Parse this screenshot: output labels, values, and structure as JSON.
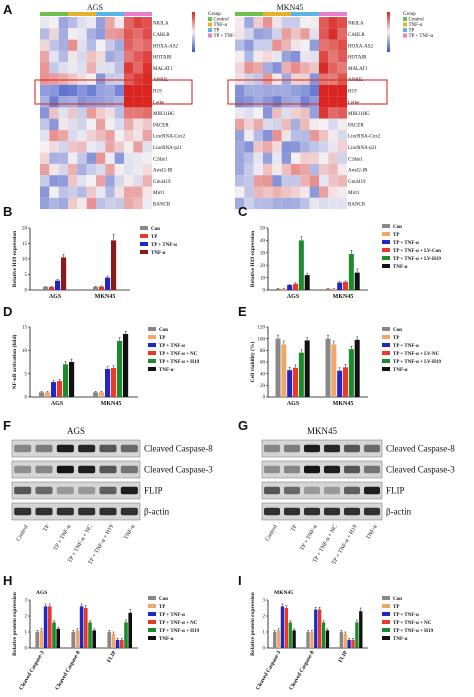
{
  "panel_A": {
    "label": "A",
    "heatmaps": [
      {
        "title": "AGS"
      },
      {
        "title": "MKN45"
      }
    ],
    "genes": [
      "NKILA",
      "CARLR",
      "HOXA-AS2",
      "HOTAIR",
      "MALAT1",
      "ANRIL",
      "H19",
      "Lethe",
      "MIR31HG",
      "PACER",
      "LincRNA-Cox2",
      "LincRNA-p21",
      "C2dat1",
      "Ariel2-IR",
      "Gm4419",
      "Mirt1",
      "BANCR"
    ],
    "group_legend": {
      "title": "Group",
      "items": [
        "Control",
        "TNF-α",
        "TP",
        "TP + TNF-α"
      ]
    },
    "colors": {
      "high": "#d9241f",
      "mid": "#f4f1f4",
      "low": "#3b53c6",
      "box": "#d73027"
    }
  },
  "chart_data": [
    {
      "panel": "B",
      "type": "bar",
      "ylabel": "Relative H19 expression",
      "categories": [
        "AGS",
        "MKN45"
      ],
      "series": [
        {
          "name": "Con",
          "color": "#888888",
          "values": [
            1.0,
            1.0
          ],
          "err": [
            0.2,
            0.2
          ]
        },
        {
          "name": "TP",
          "color": "#e8392b",
          "values": [
            1.0,
            1.1
          ],
          "err": [
            0.2,
            0.2
          ]
        },
        {
          "name": "TP + TNF-α",
          "color": "#2027c2",
          "values": [
            3.0,
            4.0
          ],
          "err": [
            0.4,
            0.5
          ]
        },
        {
          "name": "TNF-α",
          "color": "#8b1a1a",
          "values": [
            10.5,
            16.0
          ],
          "err": [
            1.0,
            2.0
          ]
        }
      ],
      "ylim": [
        0,
        20
      ],
      "yticks": [
        0,
        5,
        10,
        15,
        20
      ]
    },
    {
      "panel": "C",
      "type": "bar",
      "ylabel": "Relative H19 expression",
      "categories": [
        "AGS",
        "MKN45"
      ],
      "series": [
        {
          "name": "Con",
          "color": "#888888",
          "values": [
            1.0,
            1.0
          ],
          "err": [
            0.2,
            0.2
          ]
        },
        {
          "name": "TP",
          "color": "#f0a86a",
          "values": [
            1.0,
            1.0
          ],
          "err": [
            0.2,
            0.2
          ]
        },
        {
          "name": "TP + TNF-α",
          "color": "#2027c2",
          "values": [
            4.0,
            6.0
          ],
          "err": [
            0.6,
            0.8
          ]
        },
        {
          "name": "TP + TNF-α + LV-Con",
          "color": "#e8392b",
          "values": [
            5.0,
            6.5
          ],
          "err": [
            0.8,
            0.8
          ]
        },
        {
          "name": "TP + TNF-α + LV-H19",
          "color": "#1d8a2e",
          "values": [
            40.0,
            29.0
          ],
          "err": [
            3.0,
            3.0
          ]
        },
        {
          "name": "TNF-α",
          "color": "#111111",
          "values": [
            12.0,
            14.0
          ],
          "err": [
            1.5,
            3.0
          ]
        }
      ],
      "ylim": [
        0,
        50
      ],
      "yticks": [
        0,
        10,
        20,
        30,
        40,
        50
      ]
    },
    {
      "panel": "D",
      "type": "bar",
      "ylabel": "NF-κB activation (fold)",
      "categories": [
        "AGS",
        "MKN45"
      ],
      "series": [
        {
          "name": "Con",
          "color": "#888888",
          "values": [
            1.0,
            1.0
          ],
          "err": [
            0.2,
            0.2
          ]
        },
        {
          "name": "TP",
          "color": "#f0a86a",
          "values": [
            1.0,
            1.0
          ],
          "err": [
            0.2,
            0.2
          ]
        },
        {
          "name": "TP + TNF-α",
          "color": "#2027c2",
          "values": [
            3.2,
            6.0
          ],
          "err": [
            0.4,
            0.5
          ]
        },
        {
          "name": "TP + TNF-α + NC",
          "color": "#e8392b",
          "values": [
            3.4,
            6.2
          ],
          "err": [
            0.4,
            0.5
          ]
        },
        {
          "name": "TP + TNF-α + H19",
          "color": "#1d8a2e",
          "values": [
            7.0,
            12.0
          ],
          "err": [
            0.6,
            0.7
          ]
        },
        {
          "name": "TNF-α",
          "color": "#111111",
          "values": [
            7.5,
            13.5
          ],
          "err": [
            0.6,
            0.6
          ]
        }
      ],
      "ylim": [
        0,
        15
      ],
      "yticks": [
        0,
        5,
        10,
        15
      ]
    },
    {
      "panel": "E",
      "type": "bar",
      "ylabel": "Cell viability (%)",
      "categories": [
        "AGS",
        "MKN45"
      ],
      "series": [
        {
          "name": "Con",
          "color": "#888888",
          "values": [
            100,
            100
          ],
          "err": [
            6,
            6
          ]
        },
        {
          "name": "TP",
          "color": "#f0a86a",
          "values": [
            90,
            90
          ],
          "err": [
            6,
            6
          ]
        },
        {
          "name": "TP + TNF-α",
          "color": "#2027c2",
          "values": [
            46,
            45
          ],
          "err": [
            5,
            5
          ]
        },
        {
          "name": "TP + TNF-α + LV-NC",
          "color": "#e8392b",
          "values": [
            50,
            51
          ],
          "err": [
            5,
            5
          ]
        },
        {
          "name": "TP + TNF-α + LV-H19",
          "color": "#1d8a2e",
          "values": [
            76,
            82
          ],
          "err": [
            5,
            5
          ]
        },
        {
          "name": "TNF-α",
          "color": "#111111",
          "values": [
            97,
            98
          ],
          "err": [
            5,
            5
          ]
        }
      ],
      "ylim": [
        0,
        120
      ],
      "yticks": [
        0,
        20,
        40,
        60,
        80,
        100,
        120
      ]
    },
    {
      "panel": "H",
      "type": "bar",
      "title": "AGS",
      "ylabel": "Relative protein expression",
      "categories": [
        "Cleaved Caspase-3",
        "Cleaved Caspase-8",
        "FLIP"
      ],
      "series": [
        {
          "name": "Con",
          "color": "#888888",
          "values": [
            1.0,
            1.0,
            1.0
          ],
          "err": [
            0.1,
            0.1,
            0.1
          ]
        },
        {
          "name": "TP",
          "color": "#f0a86a",
          "values": [
            1.1,
            1.1,
            0.9
          ],
          "err": [
            0.1,
            0.1,
            0.1
          ]
        },
        {
          "name": "TP + TNF-α",
          "color": "#2027c2",
          "values": [
            2.6,
            2.6,
            0.5
          ],
          "err": [
            0.15,
            0.15,
            0.1
          ]
        },
        {
          "name": "TP + TNF-α + NC",
          "color": "#e8392b",
          "values": [
            2.6,
            2.5,
            0.5
          ],
          "err": [
            0.15,
            0.15,
            0.1
          ]
        },
        {
          "name": "TP + TNF-α + H19",
          "color": "#1d8a2e",
          "values": [
            1.6,
            1.6,
            1.6
          ],
          "err": [
            0.1,
            0.1,
            0.15
          ]
        },
        {
          "name": "TNF-α",
          "color": "#111111",
          "values": [
            1.2,
            1.1,
            2.2
          ],
          "err": [
            0.1,
            0.1,
            0.2
          ]
        }
      ],
      "ylim": [
        0,
        3
      ],
      "yticks": [
        0,
        1,
        2,
        3
      ]
    },
    {
      "panel": "I",
      "type": "bar",
      "title": "MKN45",
      "ylabel": "Relative protein expression",
      "categories": [
        "Cleaved Caspase-3",
        "Cleaved Caspase-8",
        "FLIP"
      ],
      "series": [
        {
          "name": "Con",
          "color": "#888888",
          "values": [
            1.0,
            1.0,
            1.0
          ],
          "err": [
            0.1,
            0.1,
            0.1
          ]
        },
        {
          "name": "TP",
          "color": "#f0a86a",
          "values": [
            1.1,
            1.0,
            0.9
          ],
          "err": [
            0.1,
            0.1,
            0.1
          ]
        },
        {
          "name": "TP + TNF-α",
          "color": "#2027c2",
          "values": [
            2.6,
            2.4,
            0.5
          ],
          "err": [
            0.15,
            0.15,
            0.1
          ]
        },
        {
          "name": "TP + TNF-α + NC",
          "color": "#e8392b",
          "values": [
            2.5,
            2.4,
            0.5
          ],
          "err": [
            0.15,
            0.15,
            0.1
          ]
        },
        {
          "name": "TP + TNF-α + H19",
          "color": "#1d8a2e",
          "values": [
            1.6,
            1.6,
            1.6
          ],
          "err": [
            0.1,
            0.1,
            0.15
          ]
        },
        {
          "name": "TNF-α",
          "color": "#111111",
          "values": [
            1.1,
            1.1,
            2.3
          ],
          "err": [
            0.1,
            0.1,
            0.2
          ]
        }
      ],
      "ylim": [
        0,
        3
      ],
      "yticks": [
        0,
        1,
        2,
        3
      ]
    }
  ],
  "blots": [
    {
      "panel": "F",
      "title": "AGS",
      "bands": [
        "Cleaved Caspase-8",
        "Cleaved Caspase-3",
        "FLIP",
        "β-actin"
      ],
      "lanes": [
        "Control",
        "TP",
        "TP + TNF-α",
        "TP + TNF-α + NC",
        "TP + TNF-α + H19",
        "TNF-α"
      ]
    },
    {
      "panel": "G",
      "title": "MKN45",
      "bands": [
        "Cleaved Caspase-8",
        "Cleaved Caspase-3",
        "FLIP",
        "β-actin"
      ],
      "lanes": [
        "Control",
        "TP",
        "TP + TNF-α",
        "TP + TNF-α + NC",
        "TP + TNF-α + H19",
        "TNF-α"
      ]
    }
  ]
}
